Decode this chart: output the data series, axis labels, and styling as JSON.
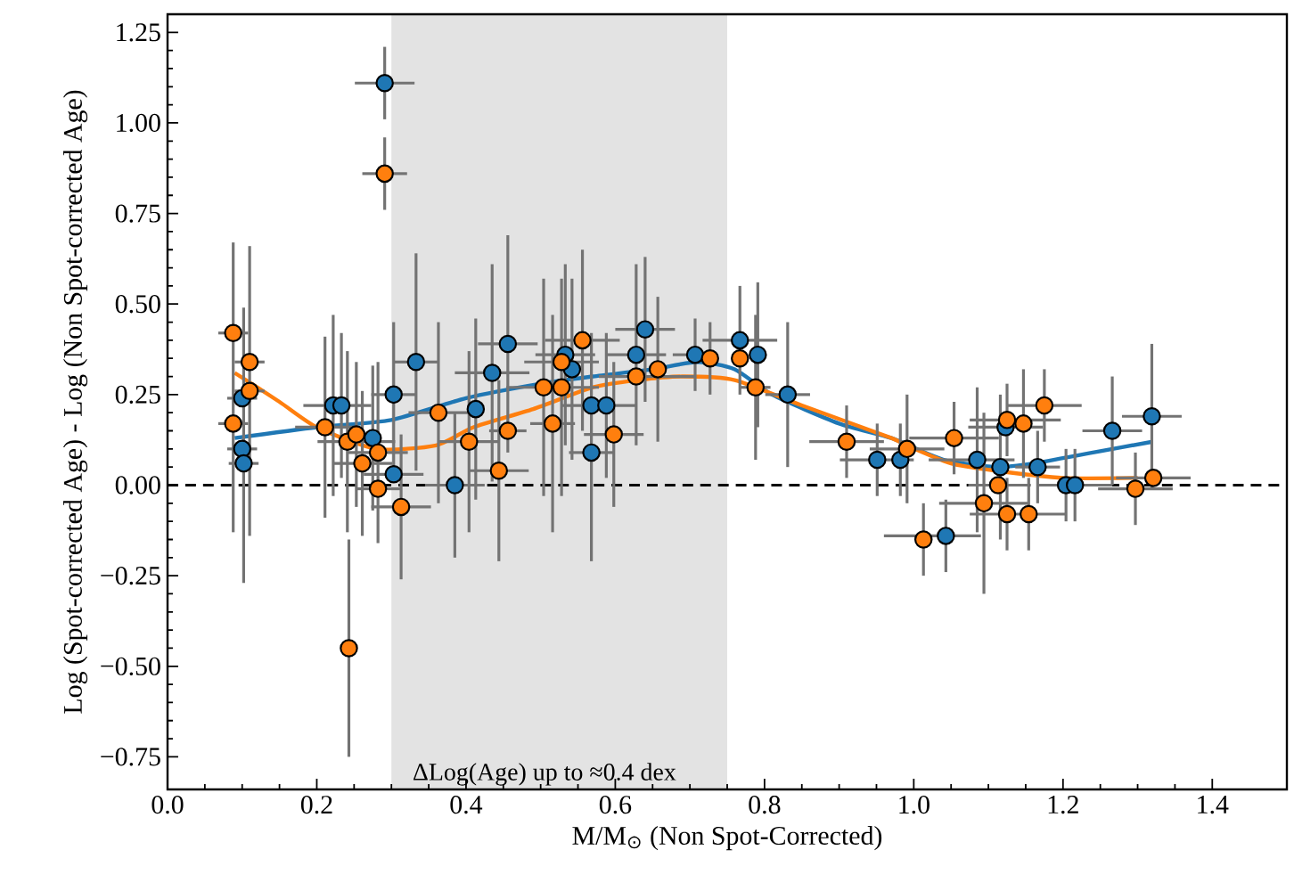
{
  "chart_data": {
    "type": "scatter",
    "xlabel": "M/M$_{⊙}$ (Non Spot-Corrected)",
    "ylabel": "Log (Spot-corrected Age) - Log (Non Spot-corrected Age)",
    "xlim": [
      0,
      1.5
    ],
    "ylim": [
      -0.84,
      1.3
    ],
    "xticks": [
      {
        "value": 0,
        "label": "0.0"
      },
      {
        "value": 0.2,
        "label": "0.2"
      },
      {
        "value": 0.4,
        "label": "0.4"
      },
      {
        "value": 0.6,
        "label": "0.6"
      },
      {
        "value": 0.8,
        "label": "0.8"
      },
      {
        "value": 1.0,
        "label": "1.0"
      },
      {
        "value": 1.2,
        "label": "1.2"
      },
      {
        "value": 1.4,
        "label": "1.4"
      }
    ],
    "yticks": [
      {
        "value": -0.75,
        "label": "−0.75"
      },
      {
        "value": -0.5,
        "label": "−0.50"
      },
      {
        "value": -0.25,
        "label": "−0.25"
      },
      {
        "value": 0,
        "label": "0.00"
      },
      {
        "value": 0.25,
        "label": "0.25"
      },
      {
        "value": 0.5,
        "label": "0.50"
      },
      {
        "value": 0.75,
        "label": "0.75"
      },
      {
        "value": 1.0,
        "label": "1.00"
      },
      {
        "value": 1.25,
        "label": "1.25"
      }
    ],
    "ref_lines": [
      {
        "axis": "y",
        "value": 0,
        "color": "#000000",
        "line_style": "dashed"
      }
    ],
    "bands": [
      {
        "axis": "x",
        "from": 0.3,
        "to": 0.75,
        "label": "ΔLog(Age) up to ≈0.4 dex",
        "color": "#e3e3e3"
      }
    ],
    "series": [
      {
        "type": "line",
        "marker": "none",
        "color": "#1f77b4",
        "x": [
          0.09,
          0.2,
          0.3,
          0.4,
          0.5,
          0.57,
          0.65,
          0.71,
          0.76,
          0.81,
          0.9,
          0.97,
          1.04,
          1.11,
          1.16,
          1.24,
          1.32
        ],
        "values": [
          0.13,
          0.16,
          0.18,
          0.24,
          0.28,
          0.3,
          0.32,
          0.34,
          0.32,
          0.25,
          0.17,
          0.13,
          0.07,
          0.05,
          0.06,
          0.09,
          0.12
        ]
      },
      {
        "type": "line",
        "marker": "none",
        "color": "#ff7f0e",
        "x": [
          0.09,
          0.15,
          0.2,
          0.28,
          0.36,
          0.41,
          0.49,
          0.57,
          0.63,
          0.69,
          0.76,
          0.85,
          0.97,
          0.99,
          1.05,
          1.11,
          1.2,
          1.3
        ],
        "values": [
          0.31,
          0.23,
          0.16,
          0.1,
          0.11,
          0.16,
          0.21,
          0.27,
          0.29,
          0.3,
          0.29,
          0.22,
          0.13,
          0.11,
          0.06,
          0.04,
          0.02,
          0.02
        ]
      },
      {
        "marker": "circle",
        "color": "#1f77b4",
        "x": [
          0.1,
          0.1,
          0.102,
          0.222,
          0.233,
          0.275,
          0.291,
          0.303,
          0.303,
          0.333,
          0.385,
          0.413,
          0.435,
          0.456,
          0.533,
          0.542,
          0.568,
          0.568,
          0.588,
          0.628,
          0.64,
          0.707,
          0.76,
          0.767,
          0.791,
          0.831,
          0.951,
          0.982,
          1.043,
          1.085,
          1.116,
          1.123,
          1.166,
          1.204,
          1.216,
          1.266,
          1.319
        ],
        "values": [
          0.24,
          0.1,
          0.06,
          0.22,
          0.22,
          0.13,
          1.11,
          0.25,
          0.03,
          0.34,
          0.0,
          0.21,
          0.31,
          0.39,
          0.36,
          0.32,
          0.22,
          0.09,
          0.22,
          0.36,
          0.43,
          0.36,
          null,
          0.4,
          0.36,
          0.25,
          0.07,
          0.07,
          -0.14,
          0.07,
          0.05,
          0.16,
          0.05,
          0.0,
          0.0,
          0.15,
          0.19
        ],
        "errors": [
          null,
          null,
          [
            -0.27,
            0.49
          ],
          0.25,
          0.2,
          0.2,
          0.1,
          0.2,
          null,
          0.3,
          0.2,
          0.25,
          0.3,
          0.3,
          0.25,
          0.25,
          [
            -0.21,
            0.42
          ],
          null,
          0.2,
          0.25,
          0.2,
          0.1,
          null,
          0.15,
          0.2,
          0.2,
          0.1,
          0.1,
          0.1,
          0.2,
          0.2,
          null,
          0.1,
          0.1,
          0.1,
          0.15,
          0.2
        ],
        "xerrors": [
          0.02,
          0.02,
          0.02,
          null,
          [
            0.182,
            0.273
          ],
          null,
          0.04,
          0.03,
          0.04,
          0.03,
          0.04,
          null,
          0.05,
          0.04,
          0.04,
          null,
          [
            0.528,
            0.628
          ],
          0.03,
          null,
          0.04,
          0.04,
          0.03,
          null,
          0.05,
          null,
          0.03,
          [
            0.901,
            1.0
          ],
          null,
          [
            0.96,
            1.09
          ],
          [
            1.02,
            1.135
          ],
          null,
          0.05,
          0.03,
          null,
          [
            1.166,
            1.266
          ],
          0.04,
          0.04
        ]
      },
      {
        "marker": "circle",
        "color": "#ff7f0e",
        "x": [
          0.088,
          0.088,
          0.11,
          0.11,
          0.211,
          0.241,
          0.243,
          0.253,
          0.261,
          0.282,
          0.282,
          0.291,
          0.313,
          0.363,
          0.404,
          0.444,
          0.456,
          0.504,
          0.516,
          0.528,
          0.528,
          0.556,
          0.598,
          0.628,
          0.657,
          0.727,
          0.767,
          0.788,
          0.91,
          0.991,
          1.013,
          1.054,
          1.094,
          1.113,
          1.125,
          1.125,
          1.147,
          1.154,
          1.175,
          1.297,
          1.321
        ],
        "values": [
          0.42,
          0.17,
          0.34,
          0.26,
          0.16,
          0.12,
          -0.45,
          0.14,
          0.06,
          0.09,
          -0.01,
          0.86,
          -0.06,
          0.2,
          0.12,
          0.04,
          0.15,
          0.27,
          0.17,
          0.27,
          0.34,
          0.4,
          0.14,
          0.3,
          0.32,
          0.35,
          0.35,
          0.27,
          0.12,
          0.1,
          -0.15,
          0.13,
          -0.05,
          0.0,
          -0.08,
          0.18,
          0.17,
          -0.08,
          0.22,
          -0.01,
          0.02
        ],
        "errors": [
          null,
          [
            -0.13,
            0.67
          ],
          null,
          0.4,
          0.25,
          0.25,
          0.3,
          0.2,
          0.2,
          0.25,
          null,
          0.1,
          0.2,
          0.25,
          0.25,
          0.25,
          null,
          0.3,
          0.3,
          0.3,
          null,
          0.25,
          0.2,
          null,
          0.2,
          0.1,
          null,
          0.2,
          0.1,
          0.15,
          0.1,
          0.1,
          0.25,
          null,
          0.1,
          0.1,
          0.15,
          0.1,
          0.1,
          0.1,
          null
        ],
        "xerrors": [
          0.02,
          0.02,
          0.02,
          0.02,
          0.04,
          [
            0.201,
            0.305
          ],
          0.01,
          null,
          0.04,
          0.04,
          0.03,
          0.03,
          0.04,
          [
            0.323,
            0.403
          ],
          0.04,
          0.04,
          0.025,
          [
            0.454,
            0.578
          ],
          0.03,
          null,
          0.05,
          0.05,
          0.04,
          [
            0.578,
            0.707
          ],
          null,
          null,
          null,
          0.02,
          0.05,
          0.05,
          null,
          0.06,
          0.06,
          0.04,
          [
            1.075,
            1.204
          ],
          [
            1.075,
            1.197
          ],
          null,
          null,
          0.05,
          0.05,
          0.05
        ]
      }
    ]
  }
}
